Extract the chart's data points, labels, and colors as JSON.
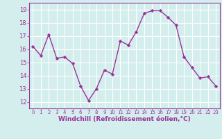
{
  "x": [
    0,
    1,
    2,
    3,
    4,
    5,
    6,
    7,
    8,
    9,
    10,
    11,
    12,
    13,
    14,
    15,
    16,
    17,
    18,
    19,
    20,
    21,
    22,
    23
  ],
  "y": [
    16.2,
    15.5,
    17.1,
    15.3,
    15.4,
    14.9,
    13.2,
    12.1,
    13.0,
    14.4,
    14.1,
    16.6,
    16.3,
    17.3,
    18.7,
    18.9,
    18.9,
    18.4,
    17.8,
    15.4,
    14.6,
    13.8,
    13.9,
    13.2
  ],
  "line_color": "#993399",
  "marker": "D",
  "markersize": 2.2,
  "linewidth": 1.0,
  "xlabel": "Windchill (Refroidissement éolien,°C)",
  "xlabel_fontsize": 6.5,
  "xtick_labels": [
    "0",
    "1",
    "2",
    "3",
    "4",
    "5",
    "6",
    "7",
    "8",
    "9",
    "10",
    "11",
    "12",
    "13",
    "14",
    "15",
    "16",
    "17",
    "18",
    "19",
    "20",
    "21",
    "22",
    "23"
  ],
  "ytick_values": [
    12,
    13,
    14,
    15,
    16,
    17,
    18,
    19
  ],
  "ylim": [
    11.5,
    19.5
  ],
  "xlim": [
    -0.5,
    23.5
  ],
  "bg_color": "#d4eeee",
  "grid_color": "#ffffff",
  "tick_color": "#993399",
  "label_color": "#993399",
  "xtick_fontsize": 5.0,
  "ytick_fontsize": 6.0
}
